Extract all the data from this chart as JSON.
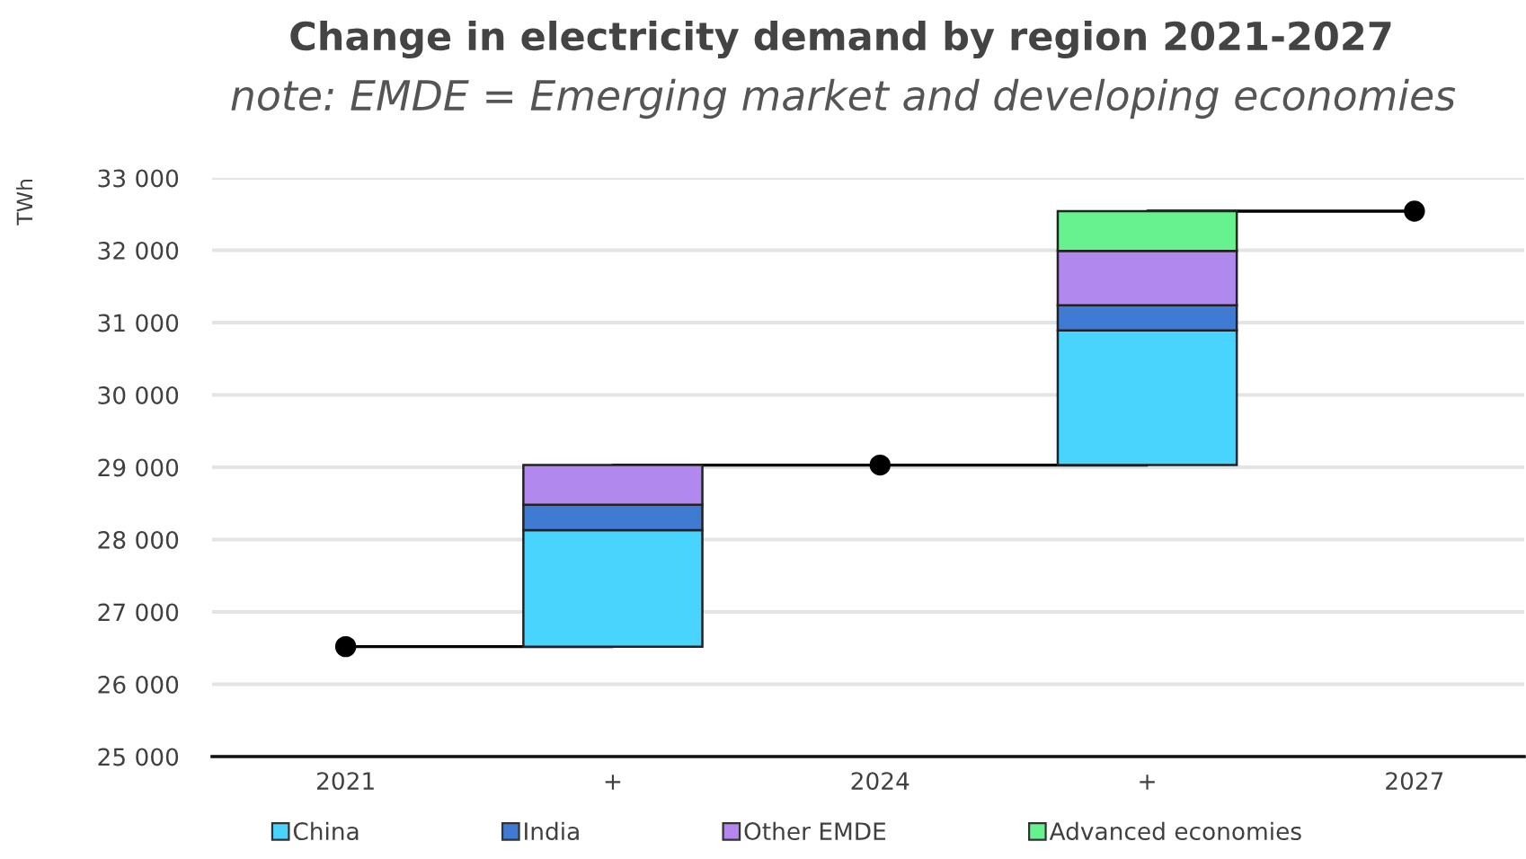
{
  "chart_data": {
    "type": "bar",
    "title": "Change in electricity demand by region 2021-2027",
    "subtitle": "note: EMDE = Emerging market and developing economies",
    "ylabel": "TWh",
    "categories": [
      "2021",
      "+",
      "2024",
      "+",
      "2027"
    ],
    "series": [
      {
        "name": "China",
        "color": "#48d4fc",
        "base": [
          null,
          26520,
          null,
          29030,
          null
        ],
        "values": [
          null,
          1610,
          null,
          1860,
          null
        ]
      },
      {
        "name": "India",
        "color": "#3f7bd3",
        "base": [
          null,
          28130,
          null,
          30890,
          null
        ],
        "values": [
          null,
          350,
          null,
          350,
          null
        ]
      },
      {
        "name": "Other EMDE",
        "color": "#b088ee",
        "base": [
          null,
          28480,
          null,
          31240,
          null
        ],
        "values": [
          null,
          550,
          null,
          750,
          null
        ]
      },
      {
        "name": "Advanced economies",
        "color": "#68f28f",
        "base": [
          null,
          null,
          null,
          31990,
          null
        ],
        "values": [
          null,
          null,
          null,
          550,
          null
        ]
      },
      {
        "type": "step",
        "color": "#000000",
        "line_style": "solid",
        "marker": "none",
        "values": [
          26520,
          29030,
          29030,
          32540,
          32540
        ]
      },
      {
        "type": "scatter",
        "color": "#000000",
        "marker": "circle",
        "values": [
          26520,
          null,
          29030,
          null,
          32540
        ]
      }
    ],
    "ylim": [
      25000,
      33000
    ],
    "yticks": [
      {
        "value": 25000,
        "label": "25 000"
      },
      {
        "value": 26000,
        "label": "26 000"
      },
      {
        "value": 27000,
        "label": "27 000"
      },
      {
        "value": 28000,
        "label": "28 000"
      },
      {
        "value": 29000,
        "label": "29 000"
      },
      {
        "value": 30000,
        "label": "30 000"
      },
      {
        "value": 31000,
        "label": "31 000"
      },
      {
        "value": 32000,
        "label": "32 000"
      },
      {
        "value": 33000,
        "label": "33 000"
      }
    ],
    "grid": "y",
    "legend": "bottom"
  }
}
